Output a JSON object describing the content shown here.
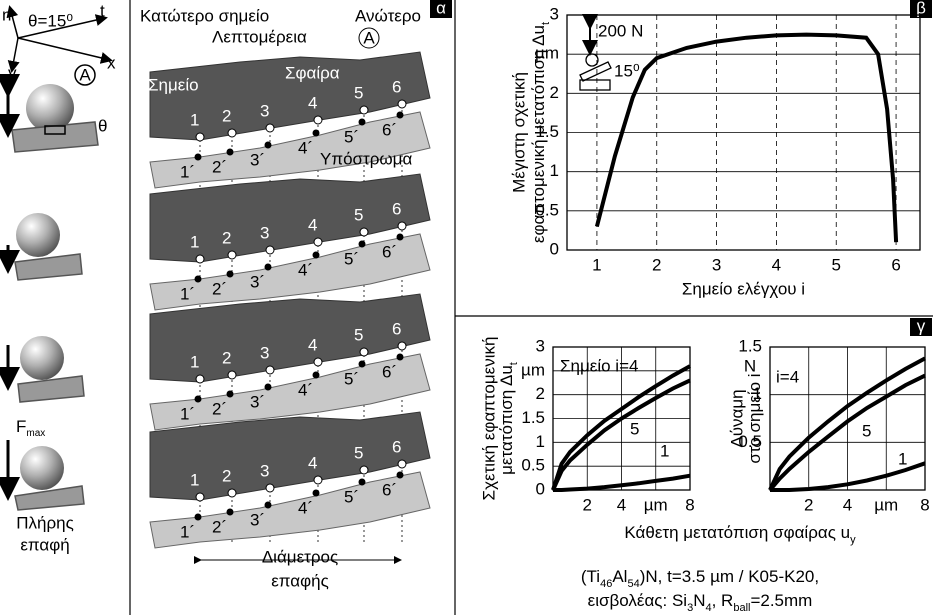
{
  "left_panel": {
    "axis_n": "n",
    "angle": "θ=15⁰",
    "axis_t": "t",
    "axis_y": "y",
    "axis_x": "x",
    "detail_marker": "A",
    "contact_angle": "θ",
    "force": "F",
    "force_sub": "max",
    "full_contact": [
      "Πλήρης",
      "επαφή"
    ]
  },
  "panel_a": {
    "label": "α",
    "lower_point": "Κατώτερο σημείο",
    "upper_point": "Ανώτερο",
    "detail": "Λεπτομέρεια",
    "detail_marker": "A",
    "point": "Σημείο",
    "ball": "Σφαίρα",
    "substrate": "Υπόστρωμα",
    "ball_points": [
      "1",
      "2",
      "3",
      "4",
      "5",
      "6"
    ],
    "substrate_points": [
      "1´",
      "2´",
      "3´",
      "4´",
      "5´",
      "6´"
    ],
    "contact_diameter": [
      "Διάμετρος",
      "επαφής"
    ]
  },
  "panel_b_label": "β",
  "panel_c_label": "γ",
  "chart_data": [
    {
      "type": "line",
      "ylabel": [
        "Μέγιστη σχετική",
        "εφαπτομενική μετατόπιση Δu"
      ],
      "ylabel_sub": "t",
      "xlabel": "Σημείο ελέγχου i",
      "x": [
        1,
        1.3,
        1.6,
        1.8,
        2,
        2.5,
        3,
        3.5,
        4,
        4.5,
        5,
        5.5,
        5.7,
        5.85,
        5.95,
        6
      ],
      "series": [
        {
          "color": "#000000",
          "values": [
            0.3,
            1.2,
            1.95,
            2.3,
            2.45,
            2.58,
            2.66,
            2.71,
            2.74,
            2.75,
            2.74,
            2.71,
            2.5,
            1.8,
            0.9,
            0.1
          ]
        }
      ],
      "xlim": [
        0.5,
        6.4
      ],
      "ylim": [
        0,
        3
      ],
      "xticks": [
        1,
        2,
        3,
        4,
        5,
        6
      ],
      "yticks": [
        0,
        0.5,
        1,
        1.5,
        2,
        {
          "value": 2.5,
          "label": "µm"
        },
        3
      ],
      "grid": true,
      "inset_load": "200 N",
      "inset_angle": "15⁰"
    },
    {
      "type": "line",
      "ylabel": [
        "Σχετική εφαπτομενική",
        "μετατόπιση Δu"
      ],
      "ylabel_sub": "t",
      "x": [
        0,
        0.5,
        1,
        2,
        3,
        4,
        5,
        6,
        7,
        8
      ],
      "series": [
        {
          "name": "Σημείο i=4",
          "color": "#000000",
          "values": [
            0,
            0.55,
            0.8,
            1.15,
            1.45,
            1.7,
            1.95,
            2.18,
            2.4,
            2.6
          ]
        },
        {
          "name": "5",
          "color": "#000000",
          "values": [
            0,
            0.4,
            0.62,
            0.95,
            1.25,
            1.5,
            1.72,
            1.93,
            2.13,
            2.3
          ]
        },
        {
          "name": "1",
          "color": "#000000",
          "values": [
            0,
            0,
            0.01,
            0.03,
            0.06,
            0.1,
            0.14,
            0.19,
            0.24,
            0.3
          ]
        }
      ],
      "xlim": [
        0,
        8
      ],
      "ylim": [
        0,
        3
      ],
      "xticks": [
        2,
        4,
        {
          "value": 6,
          "label": "µm"
        },
        8
      ],
      "yticks": [
        0,
        0.5,
        1,
        1.5,
        2,
        {
          "value": 2.5,
          "label": "µm"
        },
        3
      ],
      "grid": true
    },
    {
      "type": "line",
      "ylabel": [
        "Δύναμη",
        "στο σημείο i"
      ],
      "x": [
        0,
        0.5,
        1,
        2,
        3,
        4,
        5,
        6,
        7,
        8
      ],
      "series": [
        {
          "name": "i=4",
          "color": "#000000",
          "values": [
            0,
            0.22,
            0.35,
            0.55,
            0.72,
            0.88,
            1.02,
            1.15,
            1.27,
            1.38
          ]
        },
        {
          "name": "5",
          "color": "#000000",
          "values": [
            0,
            0.12,
            0.22,
            0.4,
            0.56,
            0.72,
            0.86,
            0.98,
            1.1,
            1.2
          ]
        },
        {
          "name": "1",
          "color": "#000000",
          "values": [
            0,
            0,
            0,
            0.01,
            0.03,
            0.06,
            0.1,
            0.15,
            0.21,
            0.28
          ]
        }
      ],
      "xlim": [
        0,
        8
      ],
      "ylim": [
        0,
        1.5
      ],
      "xticks": [
        2,
        4,
        {
          "value": 6,
          "label": "µm"
        },
        8
      ],
      "yticks": [
        0.5,
        1,
        1.5
      ],
      "yunit": "N",
      "grid": true
    }
  ],
  "shared_xlabel": [
    "Κάθετη μετατόπιση σφαίρας u",
    "y"
  ],
  "caption": [
    [
      "(Ti",
      "46",
      "Al",
      "54",
      ")N, t=3.5 µm / K05-K20,"
    ],
    [
      "εισβολέας: Si",
      "3",
      "N",
      "4",
      ",  R",
      "ball",
      "=2.5mm"
    ]
  ]
}
